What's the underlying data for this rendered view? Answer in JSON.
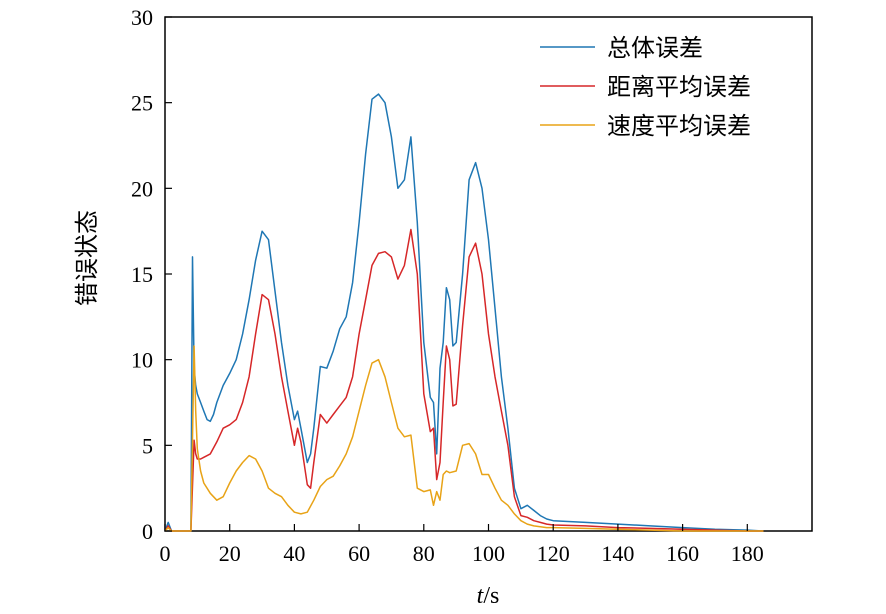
{
  "chart_data": {
    "type": "line",
    "xlabel_italic": "t",
    "xlabel_unit": "/s",
    "ylabel": "错误状态",
    "xlim": [
      0,
      200
    ],
    "ylim": [
      0,
      30
    ],
    "xticks": [
      0,
      20,
      40,
      60,
      80,
      100,
      120,
      140,
      160,
      180
    ],
    "yticks": [
      0,
      5,
      10,
      15,
      20,
      25,
      30
    ],
    "legend_position": "top-right",
    "grid": false,
    "series": [
      {
        "name": "总体误差",
        "color": "#1f77b4",
        "x": [
          0,
          1,
          2,
          3,
          4,
          5,
          6,
          7,
          8,
          8.5,
          9,
          9.5,
          10,
          11,
          12,
          13,
          14,
          15,
          16,
          18,
          20,
          22,
          24,
          26,
          28,
          30,
          32,
          34,
          36,
          38,
          40,
          41,
          42,
          44,
          45,
          46,
          48,
          50,
          52,
          54,
          56,
          58,
          60,
          62,
          64,
          66,
          68,
          70,
          72,
          74,
          76,
          78,
          80,
          82,
          83,
          84,
          85,
          86,
          87,
          88,
          89,
          90,
          92,
          94,
          96,
          98,
          100,
          102,
          104,
          106,
          108,
          110,
          112,
          114,
          116,
          118,
          120,
          130,
          140,
          150,
          160,
          170,
          180,
          185
        ],
        "y": [
          0,
          0.5,
          0,
          0,
          0,
          0,
          0,
          0,
          0,
          16.0,
          9.5,
          8.5,
          8.0,
          7.5,
          7.0,
          6.5,
          6.4,
          6.8,
          7.5,
          8.5,
          9.2,
          10.0,
          11.5,
          13.5,
          15.8,
          17.5,
          17.0,
          14.0,
          11.0,
          8.5,
          6.5,
          7.0,
          6.0,
          4.0,
          4.5,
          6.0,
          9.6,
          9.5,
          10.5,
          11.8,
          12.5,
          14.5,
          18.0,
          22.0,
          25.2,
          25.5,
          25.0,
          23.0,
          20.0,
          20.5,
          23.0,
          18.0,
          11.0,
          7.8,
          7.5,
          4.5,
          9.5,
          11.0,
          14.2,
          13.5,
          10.8,
          11.0,
          15.0,
          20.5,
          21.5,
          20.0,
          17.0,
          13.0,
          9.0,
          6.0,
          2.5,
          1.3,
          1.5,
          1.2,
          0.9,
          0.7,
          0.6,
          0.5,
          0.4,
          0.3,
          0.2,
          0.1,
          0.05,
          0.0
        ]
      },
      {
        "name": "距离平均误差",
        "color": "#d62728",
        "x": [
          0,
          1,
          2,
          3,
          4,
          5,
          6,
          7,
          8,
          9,
          9.5,
          10,
          11,
          12,
          14,
          16,
          18,
          20,
          22,
          24,
          26,
          28,
          30,
          32,
          34,
          36,
          38,
          40,
          41,
          42,
          44,
          45,
          46,
          48,
          50,
          52,
          54,
          56,
          58,
          60,
          62,
          64,
          66,
          68,
          70,
          72,
          74,
          76,
          78,
          80,
          82,
          83,
          84,
          85,
          86,
          87,
          88,
          89,
          90,
          92,
          94,
          96,
          98,
          100,
          102,
          104,
          106,
          108,
          110,
          112,
          114,
          116,
          118,
          120,
          130,
          140,
          150,
          160,
          170,
          180,
          185
        ],
        "y": [
          0,
          0.3,
          0,
          0,
          0,
          0,
          0,
          0,
          0,
          5.3,
          4.5,
          4.2,
          4.2,
          4.3,
          4.5,
          5.2,
          6.0,
          6.2,
          6.5,
          7.5,
          9.0,
          11.5,
          13.8,
          13.5,
          11.5,
          9.0,
          7.0,
          5.0,
          6.0,
          5.2,
          2.7,
          2.5,
          4.0,
          6.8,
          6.3,
          6.8,
          7.3,
          7.8,
          9.0,
          11.5,
          13.5,
          15.5,
          16.2,
          16.3,
          16.0,
          14.7,
          15.5,
          17.6,
          15.0,
          8.0,
          5.8,
          6.0,
          3.0,
          4.0,
          7.5,
          10.8,
          10.0,
          7.3,
          7.4,
          12.0,
          16.0,
          16.8,
          15.0,
          11.5,
          9.0,
          7.0,
          5.0,
          2.0,
          0.9,
          0.8,
          0.6,
          0.5,
          0.4,
          0.35,
          0.3,
          0.2,
          0.15,
          0.1,
          0.05,
          0.0,
          0.0
        ]
      },
      {
        "name": "速度平均误差",
        "color": "#e8a317",
        "x": [
          0,
          1,
          2,
          3,
          4,
          5,
          6,
          7,
          8,
          9,
          9.5,
          10,
          11,
          12,
          14,
          16,
          18,
          20,
          22,
          24,
          26,
          28,
          30,
          32,
          34,
          36,
          38,
          40,
          42,
          44,
          46,
          48,
          50,
          52,
          54,
          56,
          58,
          60,
          62,
          64,
          66,
          68,
          70,
          72,
          74,
          76,
          78,
          80,
          82,
          83,
          84,
          85,
          86,
          87,
          88,
          90,
          92,
          94,
          96,
          98,
          100,
          102,
          104,
          106,
          108,
          110,
          112,
          114,
          116,
          118,
          120,
          130,
          140,
          150,
          160,
          170,
          180,
          185
        ],
        "y": [
          0,
          0.2,
          0,
          0,
          0,
          0,
          0,
          0,
          0,
          10.8,
          7.0,
          4.8,
          3.5,
          2.8,
          2.2,
          1.8,
          2.0,
          2.8,
          3.5,
          4.0,
          4.4,
          4.2,
          3.5,
          2.5,
          2.2,
          2.0,
          1.5,
          1.1,
          1.0,
          1.1,
          1.8,
          2.6,
          3.0,
          3.2,
          3.8,
          4.5,
          5.5,
          7.0,
          8.5,
          9.8,
          10.0,
          9.0,
          7.5,
          6.0,
          5.5,
          5.6,
          2.5,
          2.3,
          2.4,
          1.5,
          2.3,
          1.8,
          3.3,
          3.5,
          3.4,
          3.5,
          5.0,
          5.1,
          4.5,
          3.3,
          3.3,
          2.5,
          1.8,
          1.5,
          1.0,
          0.6,
          0.4,
          0.3,
          0.25,
          0.2,
          0.2,
          0.15,
          0.1,
          0.05,
          0.0,
          0.0,
          0.0,
          0.0
        ]
      }
    ]
  }
}
